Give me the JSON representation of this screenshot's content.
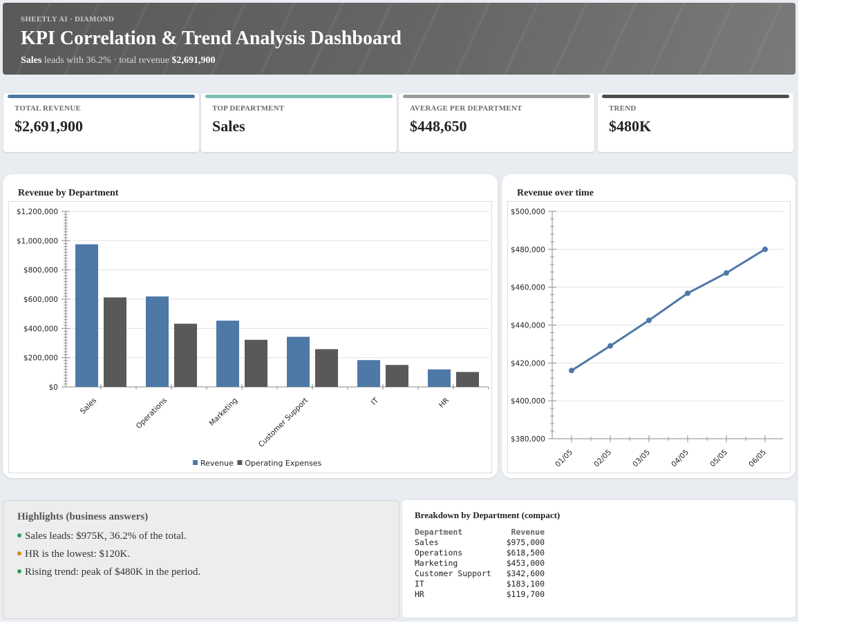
{
  "header": {
    "brand": "SHEETLY AI · DIAMOND",
    "title": "KPI Correlation & Trend Analysis Dashboard",
    "subtitle_lead": "Sales",
    "subtitle_mid": " leads with 36.2% · total revenue ",
    "subtitle_total": "$2,691,900"
  },
  "kpis": [
    {
      "label": "TOTAL REVENUE",
      "value": "$2,691,900",
      "color": "#4e78a6"
    },
    {
      "label": "TOP DEPARTMENT",
      "value": "Sales",
      "color": "#7fbfb6"
    },
    {
      "label": "AVERAGE PER DEPARTMENT",
      "value": "$448,650",
      "color": "#9b9b9b"
    },
    {
      "label": "TREND",
      "value": "$480K",
      "color": "#4d4d4d"
    }
  ],
  "colors": {
    "revenue": "#4e78a6",
    "expenses": "#595959",
    "line": "#4e78a6"
  },
  "chart_data": [
    {
      "type": "bar",
      "title": "Revenue by Department",
      "categories": [
        "Sales",
        "Operations",
        "Marketing",
        "Customer Support",
        "IT",
        "HR"
      ],
      "series": [
        {
          "name": "Revenue",
          "values": [
            975000,
            618500,
            453000,
            342600,
            183100,
            119700
          ]
        },
        {
          "name": "Operating Expenses",
          "values": [
            612000,
            432000,
            322000,
            258000,
            150000,
            102000
          ]
        }
      ],
      "ylim": [
        0,
        1200000
      ],
      "yticks": [
        "$0",
        "$200,000",
        "$400,000",
        "$600,000",
        "$800,000",
        "$1,000,000",
        "$1,200,000"
      ],
      "legend": "bottom",
      "grid": true
    },
    {
      "type": "line",
      "title": "Revenue over time",
      "x": [
        "01/05",
        "02/05",
        "03/05",
        "04/05",
        "05/05",
        "06/05"
      ],
      "series": [
        {
          "values": [
            416000,
            429000,
            442500,
            456800,
            467500,
            480000
          ]
        }
      ],
      "ylim": [
        380000,
        500000
      ],
      "yticks": [
        "$380,000",
        "$400,000",
        "$420,000",
        "$440,000",
        "$460,000",
        "$480,000",
        "$500,000"
      ],
      "grid": true
    }
  ],
  "highlights": {
    "title": "Highlights (business answers)",
    "items": [
      {
        "text": "Sales leads: $975K, 36.2% of the total.",
        "color": "#2e9d5b"
      },
      {
        "text": "HR is the lowest: $120K.",
        "color": "#d58a1f"
      },
      {
        "text": "Rising trend: peak of $480K in the period.",
        "color": "#2e9d5b"
      }
    ]
  },
  "breakdown": {
    "title": "Breakdown by Department (compact)",
    "headers": [
      "Department",
      "Revenue"
    ],
    "rows": [
      [
        "Sales",
        "$975,000"
      ],
      [
        "Operations",
        "$618,500"
      ],
      [
        "Marketing",
        "$453,000"
      ],
      [
        "Customer Support",
        "$342,600"
      ],
      [
        "IT",
        "$183,100"
      ],
      [
        "HR",
        "$119,700"
      ]
    ]
  }
}
